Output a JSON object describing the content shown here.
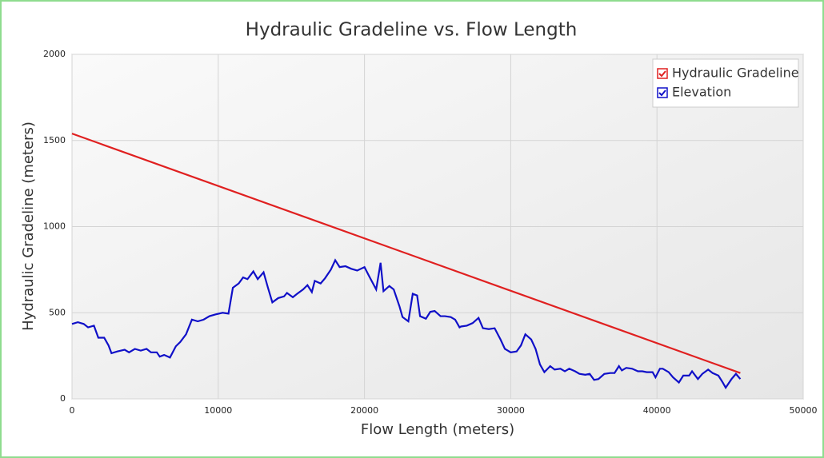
{
  "chart_data": {
    "type": "line",
    "title": "Hydraulic Gradeline vs. Flow Length",
    "x_label": "Flow Length (meters)",
    "y_label": "Hydraulic Gradeline (meters)",
    "xlim": [
      0,
      50000
    ],
    "xticks": [
      0,
      10000,
      20000,
      30000,
      40000,
      50000
    ],
    "ylim": [
      0,
      2000
    ],
    "yticks": [
      0,
      500,
      1000,
      1500,
      2000
    ],
    "grid": true,
    "legend": "top-right",
    "series": [
      {
        "name": "Hydraulic Gradeline",
        "color": "#e02020",
        "x": [
          0,
          45700
        ],
        "values": [
          1540,
          150
        ]
      },
      {
        "name": "Elevation",
        "color": "#1010c8",
        "x": [
          0,
          400,
          800,
          1100,
          1500,
          1800,
          2200,
          2500,
          2700,
          3100,
          3600,
          3900,
          4300,
          4700,
          5100,
          5400,
          5800,
          6000,
          6300,
          6700,
          7100,
          7400,
          7800,
          8200,
          8600,
          9000,
          9400,
          9800,
          10300,
          10700,
          11000,
          11400,
          11700,
          12000,
          12400,
          12700,
          13100,
          13400,
          13700,
          14100,
          14500,
          14700,
          15100,
          15400,
          15800,
          16100,
          16400,
          16600,
          17000,
          17300,
          17700,
          18000,
          18300,
          18700,
          19100,
          19500,
          20000,
          20300,
          20800,
          21100,
          21300,
          21700,
          22000,
          22400,
          22600,
          23000,
          23300,
          23600,
          23800,
          24200,
          24500,
          24800,
          25200,
          25500,
          25900,
          26200,
          26500,
          26600,
          27000,
          27400,
          27800,
          28100,
          28500,
          28900,
          29300,
          29600,
          30000,
          30400,
          30700,
          31000,
          31400,
          31700,
          32000,
          32300,
          32700,
          33000,
          33400,
          33700,
          34000,
          34400,
          34700,
          35100,
          35400,
          35700,
          36000,
          36400,
          36800,
          37100,
          37400,
          37600,
          37900,
          38300,
          38700,
          39000,
          39300,
          39700,
          39900,
          40200,
          40400,
          40800,
          41100,
          41500,
          41800,
          42200,
          42400,
          42800,
          43100,
          43500,
          43800,
          44200,
          44500,
          44700,
          45100,
          45400,
          45700
        ],
        "values": [
          435,
          445,
          435,
          415,
          425,
          355,
          355,
          310,
          265,
          275,
          285,
          270,
          290,
          280,
          290,
          270,
          270,
          245,
          255,
          240,
          305,
          330,
          375,
          460,
          450,
          460,
          480,
          490,
          500,
          495,
          645,
          670,
          705,
          695,
          740,
          695,
          735,
          645,
          560,
          585,
          595,
          615,
          590,
          610,
          635,
          660,
          620,
          685,
          670,
          700,
          750,
          805,
          765,
          770,
          755,
          745,
          765,
          715,
          635,
          790,
          625,
          655,
          635,
          535,
          475,
          450,
          610,
          600,
          480,
          465,
          505,
          510,
          480,
          480,
          475,
          460,
          415,
          420,
          425,
          440,
          470,
          410,
          405,
          410,
          345,
          290,
          270,
          275,
          310,
          375,
          345,
          290,
          200,
          155,
          190,
          170,
          175,
          160,
          175,
          160,
          145,
          140,
          145,
          110,
          115,
          145,
          150,
          150,
          190,
          165,
          180,
          175,
          160,
          160,
          155,
          155,
          125,
          175,
          175,
          155,
          125,
          95,
          135,
          135,
          160,
          115,
          145,
          170,
          150,
          135,
          95,
          65,
          115,
          145,
          115
        ]
      }
    ]
  }
}
